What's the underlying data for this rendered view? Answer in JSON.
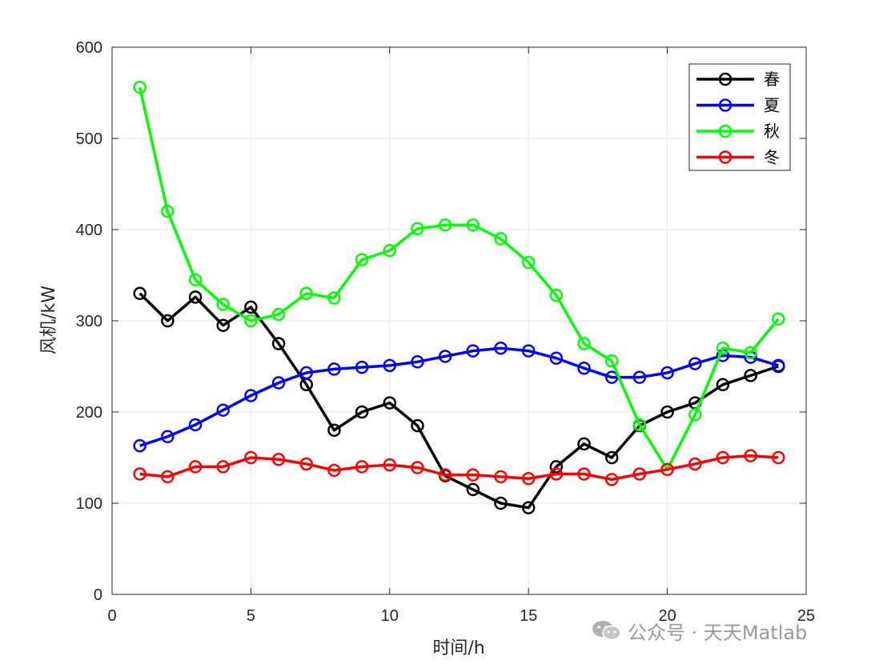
{
  "chart_data": {
    "type": "line",
    "title": "",
    "xlabel": "时间/h",
    "ylabel": "风机/kW",
    "xlim": [
      0,
      25
    ],
    "ylim": [
      0,
      600
    ],
    "xticks": [
      0,
      5,
      10,
      15,
      20,
      25
    ],
    "yticks": [
      0,
      100,
      200,
      300,
      400,
      500,
      600
    ],
    "grid": true,
    "legend_position": "top-right",
    "x": [
      1,
      2,
      3,
      4,
      5,
      6,
      7,
      8,
      9,
      10,
      11,
      12,
      13,
      14,
      15,
      16,
      17,
      18,
      19,
      20,
      21,
      22,
      23,
      24
    ],
    "series": [
      {
        "name": "春",
        "color": "#000000",
        "values": [
          330,
          300,
          326,
          295,
          315,
          275,
          230,
          180,
          200,
          210,
          185,
          130,
          115,
          100,
          95,
          140,
          165,
          150,
          185,
          200,
          210,
          230,
          240,
          250
        ]
      },
      {
        "name": "夏",
        "color": "#0000ff",
        "values": [
          163,
          173,
          186,
          202,
          218,
          232,
          243,
          247,
          249,
          251,
          255,
          261,
          267,
          270,
          267,
          259,
          248,
          238,
          238,
          243,
          253,
          262,
          260,
          251
        ]
      },
      {
        "name": "秋",
        "color": "#00ff00",
        "values": [
          556,
          420,
          345,
          318,
          300,
          307,
          330,
          325,
          367,
          377,
          401,
          405,
          405,
          390,
          364,
          328,
          275,
          256,
          186,
          137,
          197,
          270,
          265,
          302
        ]
      },
      {
        "name": "冬",
        "color": "#ff0000",
        "values": [
          132,
          129,
          140,
          140,
          150,
          148,
          143,
          136,
          140,
          142,
          139,
          131,
          131,
          129,
          127,
          132,
          132,
          126,
          132,
          137,
          143,
          150,
          152,
          150
        ]
      }
    ]
  },
  "watermark": {
    "text": "公众号 · 天天Matlab",
    "icon": "wechat-icon"
  }
}
